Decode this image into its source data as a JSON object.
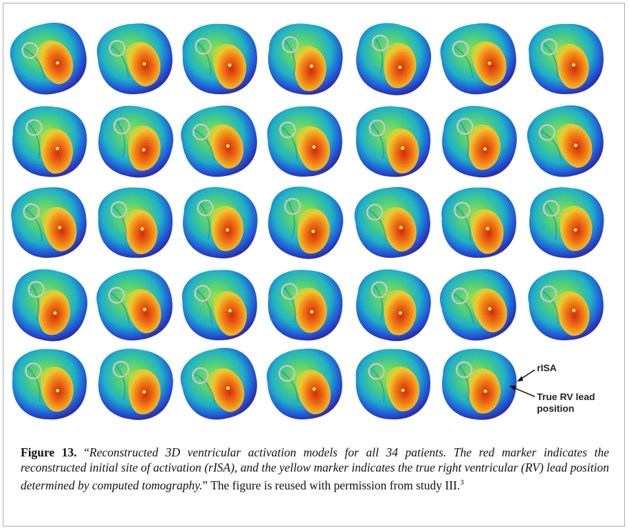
{
  "figure": {
    "annotations": {
      "risa": "rISA",
      "lead": "True RV lead position"
    },
    "caption": {
      "label": "Figure 13.",
      "quote_open": "“",
      "italic": "Reconstructed 3D ventricular activation models for all 34 patients. The red marker indicates the reconstructed initial site of activation (rISA), and the yellow marker indicates the true right ventricular (RV) lead position determined by computed tomography.",
      "rest": "” The figure is reused with permission from study III.",
      "reference": "3"
    }
  }
}
